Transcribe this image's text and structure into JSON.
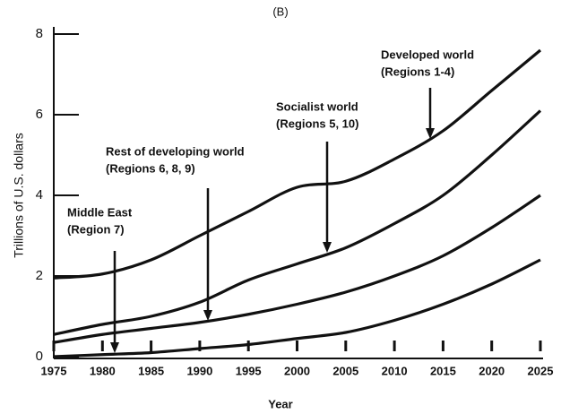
{
  "chart_data": {
    "type": "line",
    "stacked": true,
    "title": "(B)",
    "x_label": "Year",
    "y_label": "Trillions of U.S. dollars",
    "x": [
      1975,
      1980,
      1985,
      1990,
      1995,
      2000,
      2005,
      2010,
      2015,
      2020,
      2025
    ],
    "series": [
      {
        "name": "Middle East",
        "label": "(Region 7)",
        "color": "#111111",
        "values": [
          0,
          0.05,
          0.1,
          0.2,
          0.3,
          0.45,
          0.6,
          0.9,
          1.3,
          1.8,
          2.4
        ]
      },
      {
        "name": "Rest of developing world",
        "label": "(Regions 6, 8, 9)",
        "color": "#111111",
        "values": [
          0.35,
          0.5,
          0.6,
          0.65,
          0.75,
          0.85,
          1.0,
          1.1,
          1.2,
          1.4,
          1.6
        ]
      },
      {
        "name": "Socialist world",
        "label": "(Regions 5, 10)",
        "color": "#111111",
        "values": [
          0.2,
          0.25,
          0.3,
          0.5,
          0.85,
          1.0,
          1.1,
          1.3,
          1.5,
          1.8,
          2.1
        ]
      },
      {
        "name": "Developed world",
        "label": "(Regions 1-4)",
        "color": "#111111",
        "values": [
          1.4,
          1.25,
          1.4,
          1.65,
          1.7,
          1.9,
          1.65,
          1.6,
          1.6,
          1.6,
          1.5
        ]
      }
    ],
    "xlim": [
      1975,
      2025
    ],
    "xticks": [
      1975,
      1980,
      1985,
      1990,
      1995,
      2000,
      2005,
      2010,
      2015,
      2020,
      2025
    ],
    "ylim": [
      0,
      8
    ],
    "yticks": [
      0,
      2,
      4,
      6,
      8
    ],
    "grid": false
  }
}
